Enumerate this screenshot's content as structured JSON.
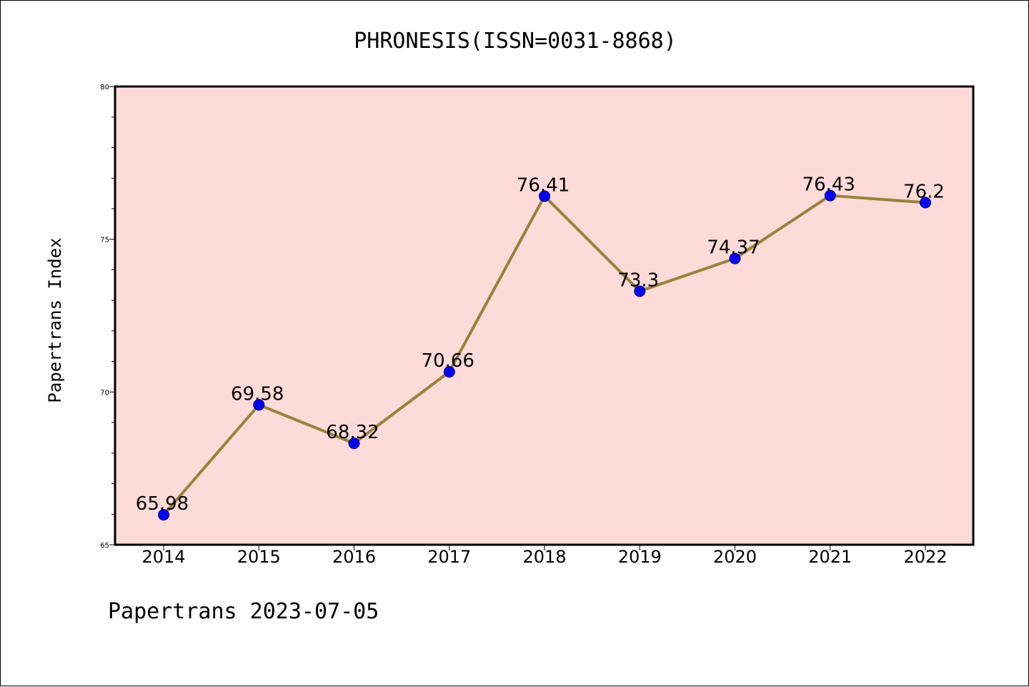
{
  "chart_data": {
    "type": "line",
    "title": "PHRONESIS(ISSN=0031-8868)",
    "xlabel": "",
    "ylabel": "Papertrans Index",
    "categories": [
      "2014",
      "2015",
      "2016",
      "2017",
      "2018",
      "2019",
      "2020",
      "2021",
      "2022"
    ],
    "values": [
      65.98,
      69.58,
      68.32,
      70.66,
      76.41,
      73.3,
      74.37,
      76.43,
      76.2
    ],
    "data_labels": [
      "65.98",
      "69.58",
      "68.32",
      "70.66",
      "76.41",
      "73.3",
      "74.37",
      "76.43",
      "76.2"
    ],
    "ylim": [
      65,
      80
    ],
    "yticks": [
      "65",
      "70",
      "75",
      "80"
    ],
    "grid": false,
    "colors": {
      "plot_background": "#fddbd8",
      "line": "#9a8236",
      "marker": "#0000ff",
      "marker_edge": "#000080"
    },
    "footer": "Papertrans 2023-07-05"
  }
}
